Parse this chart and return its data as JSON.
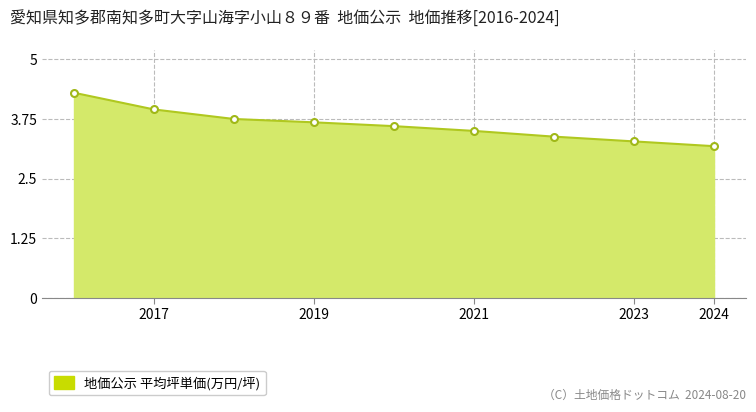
{
  "title": "愛知県知多郡南知多町大字山海字小山８９番  地価公示  地価推移[2016-2024]",
  "years": [
    2016,
    2017,
    2018,
    2019,
    2020,
    2021,
    2022,
    2023,
    2024
  ],
  "values": [
    4.3,
    3.95,
    3.75,
    3.68,
    3.6,
    3.5,
    3.38,
    3.28,
    3.18
  ],
  "line_color": "#b0c820",
  "fill_color": "#d4e96a",
  "marker_color": "#ffffff",
  "marker_edge_color": "#a0b818",
  "yticks": [
    0,
    1.25,
    2.5,
    3.75,
    5
  ],
  "ylim": [
    0,
    5.2
  ],
  "xlim": [
    2015.6,
    2024.4
  ],
  "background_color": "#ffffff",
  "grid_color": "#bbbbbb",
  "legend_label": "地価公示 平均坪単価(万円/坪)",
  "legend_marker_color": "#c8dc00",
  "copyright_text": "（C）土地価格ドットコム  2024-08-20",
  "title_fontsize": 11.5,
  "tick_fontsize": 10,
  "legend_fontsize": 9.5,
  "copyright_fontsize": 8.5
}
